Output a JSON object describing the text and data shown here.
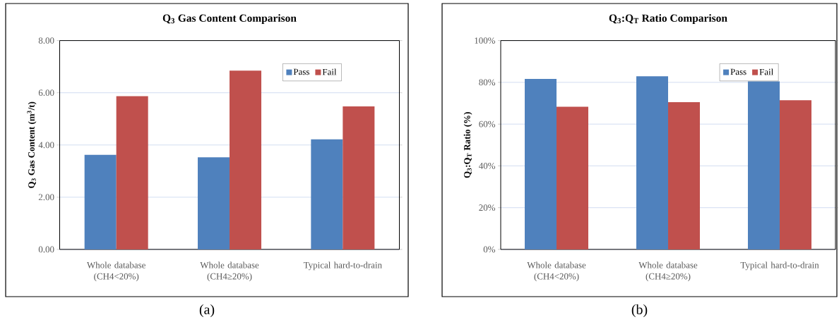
{
  "chart_data": [
    {
      "type": "bar",
      "title": "Q$_{3}$ Gas Content Comparison",
      "ylabel": "Q$_{3}$ Gas Content (m$^{3}$/t)",
      "categories": [
        "Whole database (CH4<20%)",
        "Whole database (CH4≥20%)",
        "Typical hard-to-drain"
      ],
      "series": [
        {
          "name": "Pass",
          "color": "#4f81bd",
          "values": [
            3.62,
            3.53,
            4.22
          ]
        },
        {
          "name": "Fail",
          "color": "#c0504d",
          "values": [
            5.87,
            6.85,
            5.48
          ]
        }
      ],
      "ylim": [
        0,
        8
      ],
      "yticks": [
        {
          "value": 0,
          "label": "0.00"
        },
        {
          "value": 2,
          "label": "2.00"
        },
        {
          "value": 4,
          "label": "4.00"
        },
        {
          "value": 6,
          "label": "6.00"
        },
        {
          "value": 8,
          "label": "8.00"
        }
      ],
      "grid": "y",
      "legend": "top right",
      "annotations": [
        "(a)"
      ]
    },
    {
      "type": "bar",
      "title": "Q$_{3}$:Q$_{T}$ Ratio Comparison",
      "ylabel": "Q$_{3}$:Q$_{T}$ Ratio (%)",
      "categories": [
        "Whole database (CH4<20%)",
        "Whole database (CH4≥20%)",
        "Typical hard-to-drain"
      ],
      "series": [
        {
          "name": "Pass",
          "color": "#4f81bd",
          "values": [
            81.6,
            82.9,
            80.5
          ]
        },
        {
          "name": "Fail",
          "color": "#c0504d",
          "values": [
            68.3,
            70.5,
            71.4
          ]
        }
      ],
      "ylim": [
        0,
        100
      ],
      "yticks": [
        {
          "value": 0,
          "label": "0%"
        },
        {
          "value": 20,
          "label": "20%"
        },
        {
          "value": 40,
          "label": "40%"
        },
        {
          "value": 60,
          "label": "60%"
        },
        {
          "value": 80,
          "label": "80%"
        },
        {
          "value": 100,
          "label": "100%"
        }
      ],
      "grid": "y",
      "legend": "top right",
      "annotations": [
        "(b)"
      ]
    }
  ]
}
